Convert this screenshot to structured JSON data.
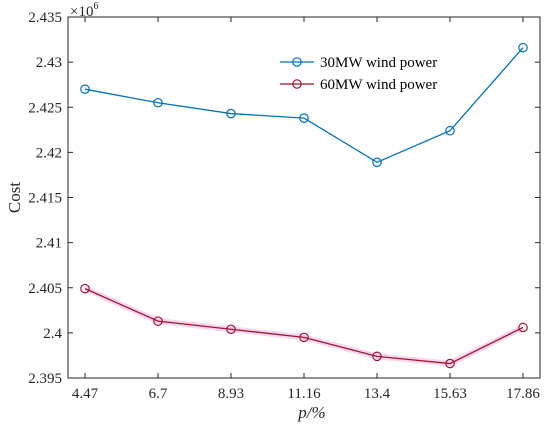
{
  "chart_data": {
    "type": "line",
    "x": [
      4.47,
      6.7,
      8.93,
      11.16,
      13.4,
      15.63,
      17.86
    ],
    "x_tick_labels": [
      "4.47",
      "6.7",
      "8.93",
      "11.16",
      "13.4",
      "15.63",
      "17.86"
    ],
    "xlabel": "p/%",
    "ylabel": "Cost",
    "y_multiplier": "×10",
    "y_exponent": "6",
    "ylim": [
      2.395,
      2.435
    ],
    "y_ticks": [
      2.395,
      2.4,
      2.405,
      2.41,
      2.415,
      2.42,
      2.425,
      2.43,
      2.435
    ],
    "y_tick_labels": [
      "2.395",
      "2.4",
      "2.405",
      "2.41",
      "2.415",
      "2.42",
      "2.425",
      "2.43",
      "2.435"
    ],
    "grid": false,
    "legend_position": "top-right",
    "series": [
      {
        "name": "30MW wind power",
        "color": "#0072BD",
        "marker": "circle",
        "values": [
          2.427,
          2.4255,
          2.4243,
          2.4238,
          2.4189,
          2.4224,
          2.4316
        ]
      },
      {
        "name": "60MW wind power",
        "color": "#A2142F",
        "marker": "circle",
        "values": [
          2.4049,
          2.4013,
          2.4004,
          2.3995,
          2.3974,
          2.3966,
          2.4006
        ]
      }
    ]
  }
}
